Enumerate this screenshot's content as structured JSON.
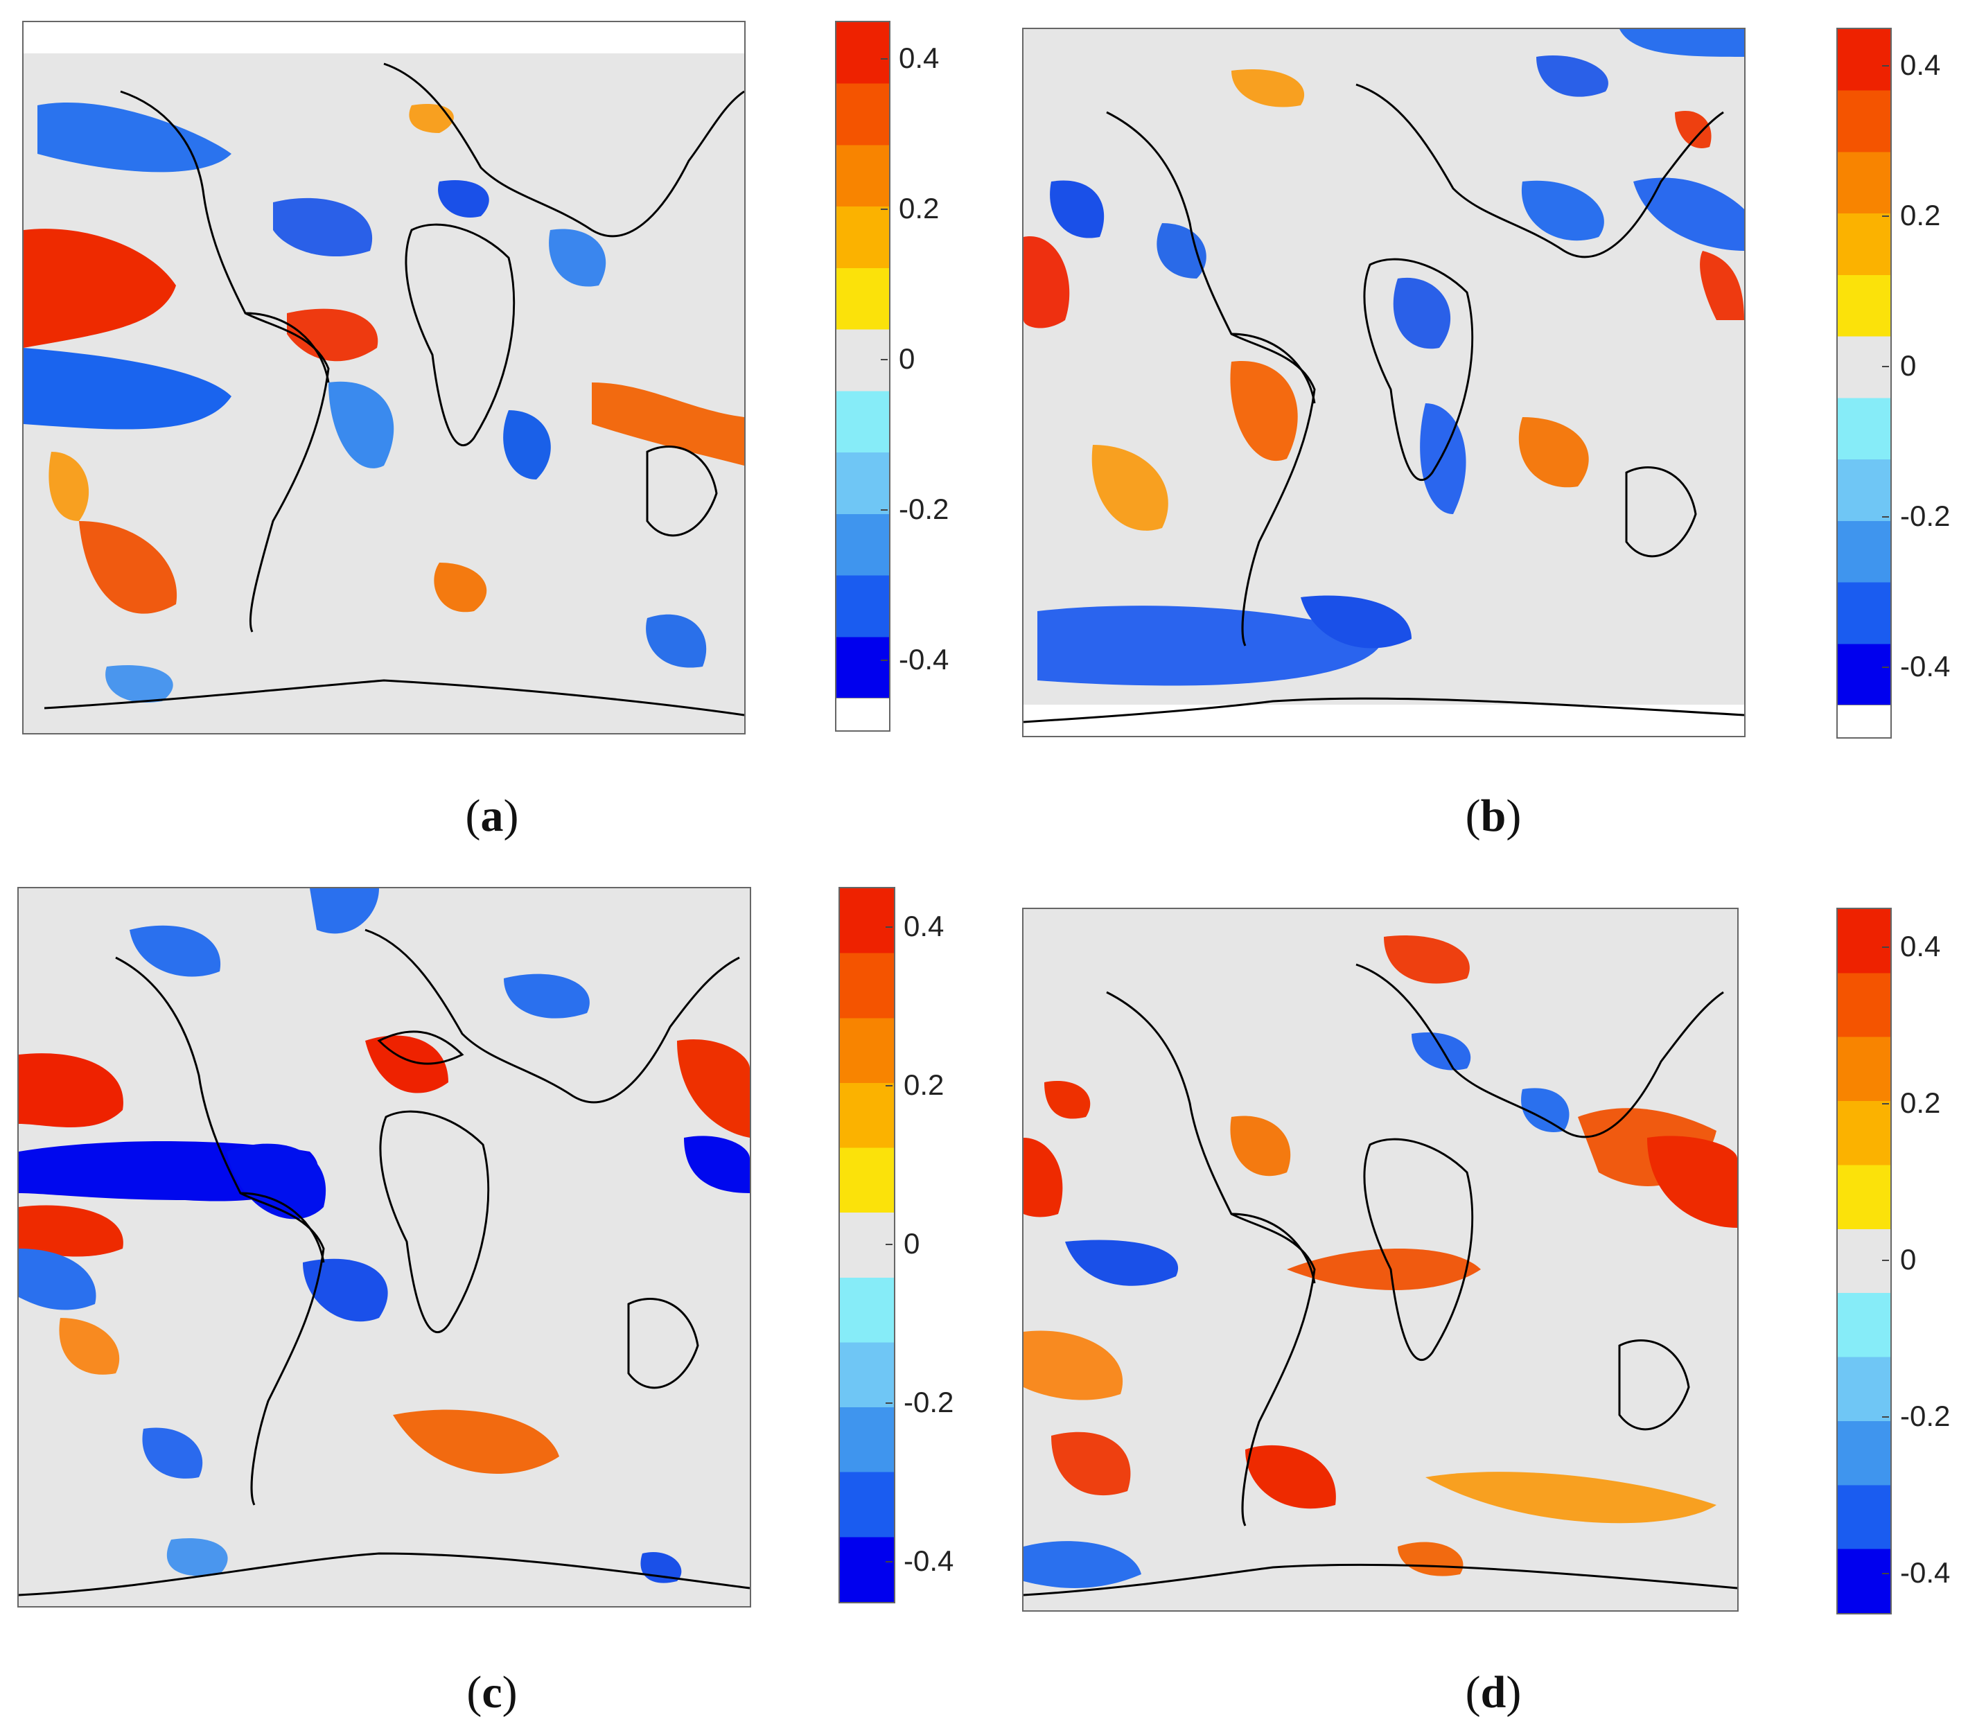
{
  "figure": {
    "panels": [
      {
        "id": "a",
        "caption_letter": "a",
        "colorbar_ticks": [
          "0.4",
          "0.2",
          "0",
          "-0.2",
          "-0.4"
        ],
        "has_white_bottom": true
      },
      {
        "id": "b",
        "caption_letter": "b",
        "colorbar_ticks": [
          "0.4",
          "0.2",
          "0",
          "-0.2",
          "-0.4"
        ],
        "has_white_bottom": true
      },
      {
        "id": "c",
        "caption_letter": "c",
        "colorbar_ticks": [
          "0.4",
          "0.2",
          "0",
          "-0.2",
          "-0.4"
        ],
        "has_white_bottom": false
      },
      {
        "id": "d",
        "caption_letter": "d",
        "colorbar_ticks": [
          "0.4",
          "0.2",
          "0",
          "-0.2",
          "-0.4"
        ],
        "has_white_bottom": false
      }
    ],
    "colorscale": {
      "range": [
        -0.45,
        0.45
      ],
      "stops": [
        "#0000ee",
        "#1a5cf0",
        "#3f95ee",
        "#6fc6f5",
        "#86ecf8",
        "#e6e6e6",
        "#fbe20a",
        "#fbb200",
        "#f88400",
        "#f45400",
        "#ee2200"
      ],
      "background": "#e6e6e6"
    },
    "coastline_color": "#000000"
  }
}
